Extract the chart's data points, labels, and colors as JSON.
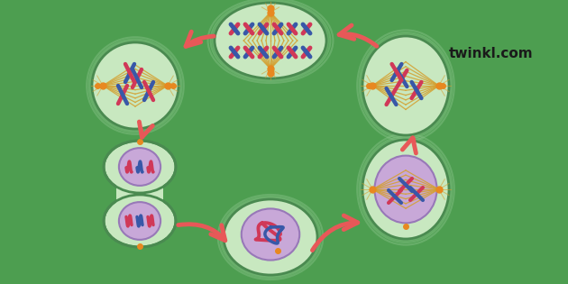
{
  "bg_color": "#4d9e50",
  "cell_color": "#c8e8c0",
  "cell_edge": "#6ab870",
  "cell_edge2": "#4a8a50",
  "nucleus_color": "#c8a8d8",
  "nucleus_edge": "#9878b8",
  "arrow_color": "#e85858",
  "chr_red": "#d03858",
  "chr_blue": "#3858a8",
  "spindle_color": "#d4a030",
  "orange_dot": "#e88820",
  "twinkl_text": "twinkl.com",
  "twinkl_color": "#1a1a1a",
  "figsize": [
    6.3,
    3.15
  ],
  "dpi": 100
}
